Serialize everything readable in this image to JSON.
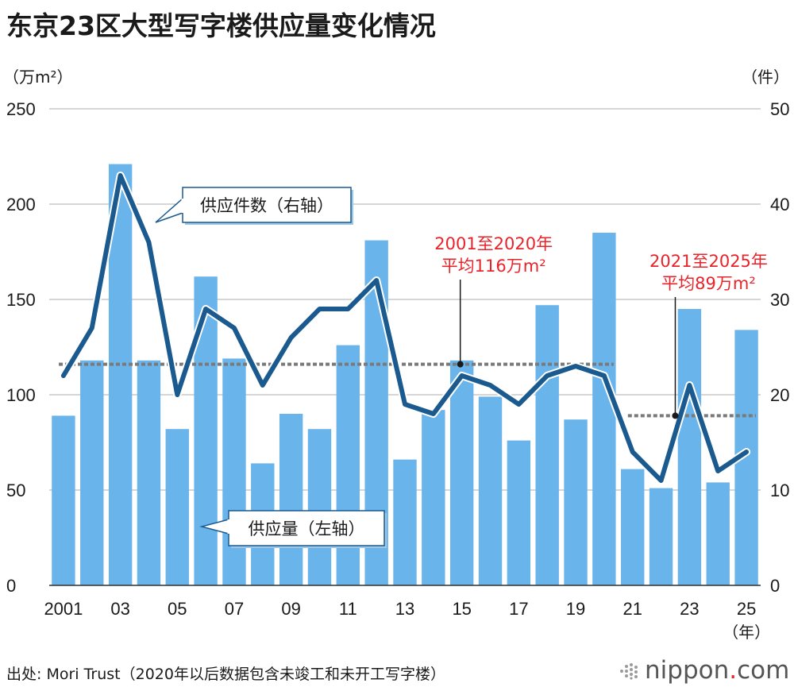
{
  "title": "东京23区大型写字楼供应量变化情况",
  "source": "出处: Mori Trust（2020年以后数据包含未竣工和未开工写字楼）",
  "logo": {
    "name": "nippon",
    "dot": ".",
    "tld": "com"
  },
  "chart_data": {
    "type": "bar+line",
    "years": [
      2001,
      2002,
      2003,
      2004,
      2005,
      2006,
      2007,
      2008,
      2009,
      2010,
      2011,
      2012,
      2013,
      2014,
      2015,
      2016,
      2017,
      2018,
      2019,
      2020,
      2021,
      2022,
      2023,
      2024,
      2025
    ],
    "x_tick_labels": {
      "2001": "2001",
      "2003": "03",
      "2005": "05",
      "2007": "07",
      "2009": "09",
      "2011": "11",
      "2013": "13",
      "2015": "15",
      "2017": "17",
      "2019": "19",
      "2021": "21",
      "2023": "23",
      "2025": "25"
    },
    "x_unit": "（年）",
    "left_axis": {
      "unit": "（万m²）",
      "range": [
        0,
        250
      ],
      "ticks": [
        0,
        50,
        100,
        150,
        200,
        250
      ]
    },
    "right_axis": {
      "unit": "（件）",
      "range": [
        0,
        50
      ],
      "ticks": [
        0,
        10,
        20,
        30,
        40,
        50
      ]
    },
    "series": [
      {
        "name": "供应量（左轴）",
        "type": "bar",
        "axis": "left",
        "color": "#6ab4ec",
        "values": [
          89,
          118,
          221,
          118,
          82,
          162,
          119,
          64,
          90,
          82,
          126,
          181,
          66,
          92,
          118,
          99,
          76,
          147,
          87,
          185,
          61,
          51,
          145,
          54,
          134
        ]
      },
      {
        "name": "供应件数（右轴）",
        "type": "line",
        "axis": "right",
        "color": "#1a5a8f",
        "values": [
          22,
          27,
          43,
          36,
          20,
          29,
          27,
          21,
          26,
          29,
          29,
          32,
          19,
          18,
          22,
          21,
          19,
          22,
          23,
          22,
          14,
          11,
          21,
          12,
          14
        ]
      }
    ],
    "averages": [
      {
        "label_line1": "2001至2020年",
        "label_line2": "平均116万m²",
        "value": 116,
        "from": 2001,
        "to": 2020
      },
      {
        "label_line1": "2021至2025年",
        "label_line2": "平均89万m²",
        "value": 89,
        "from": 2021,
        "to": 2025
      }
    ],
    "callouts": {
      "line": "供应件数（右轴）",
      "bar": "供应量（左轴）"
    }
  }
}
